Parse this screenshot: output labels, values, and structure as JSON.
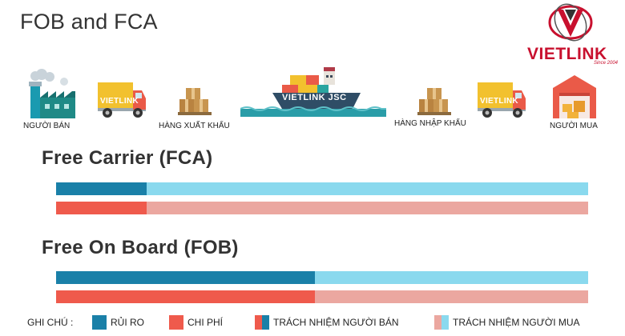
{
  "title": "FOB and FCA",
  "logo": {
    "wordmark": "VIETLINK",
    "since": "Since 2004"
  },
  "flow": {
    "seller": "NGƯỜI BÁN",
    "truck_left_text": "VIETLINK",
    "export_goods": "HÀNG XUẤT KHẨU",
    "ship_text": "VIETLINK JSC",
    "import_goods": "HÀNG NHẬP KHẨU",
    "truck_right_text": "VIETLINK",
    "buyer": "NGƯỜI MUA"
  },
  "sections": [
    {
      "title": "Free Carrier (FCA)",
      "seller_share": 0.17
    },
    {
      "title": "Free On Board (FOB)",
      "seller_share": 0.487
    }
  ],
  "legend": {
    "label": "GHI CHÚ :",
    "risk": "RỦI RO",
    "cost": "CHI PHÍ",
    "seller_resp": "TRÁCH NHIỆM NGƯỜI BÁN",
    "buyer_resp": "TRÁCH NHIỆM NGƯỜI MUA"
  },
  "colors": {
    "risk_seller": "#1a80a8",
    "risk_buyer": "#8ad9ee",
    "cost_seller": "#ef5a4c",
    "cost_buyer": "#eba7a0",
    "brand": "#c8102e"
  },
  "icons": [
    "factory-icon",
    "truck-icon",
    "boxes-icon",
    "cargo-ship-icon",
    "boxes-icon",
    "truck-icon",
    "warehouse-icon"
  ]
}
